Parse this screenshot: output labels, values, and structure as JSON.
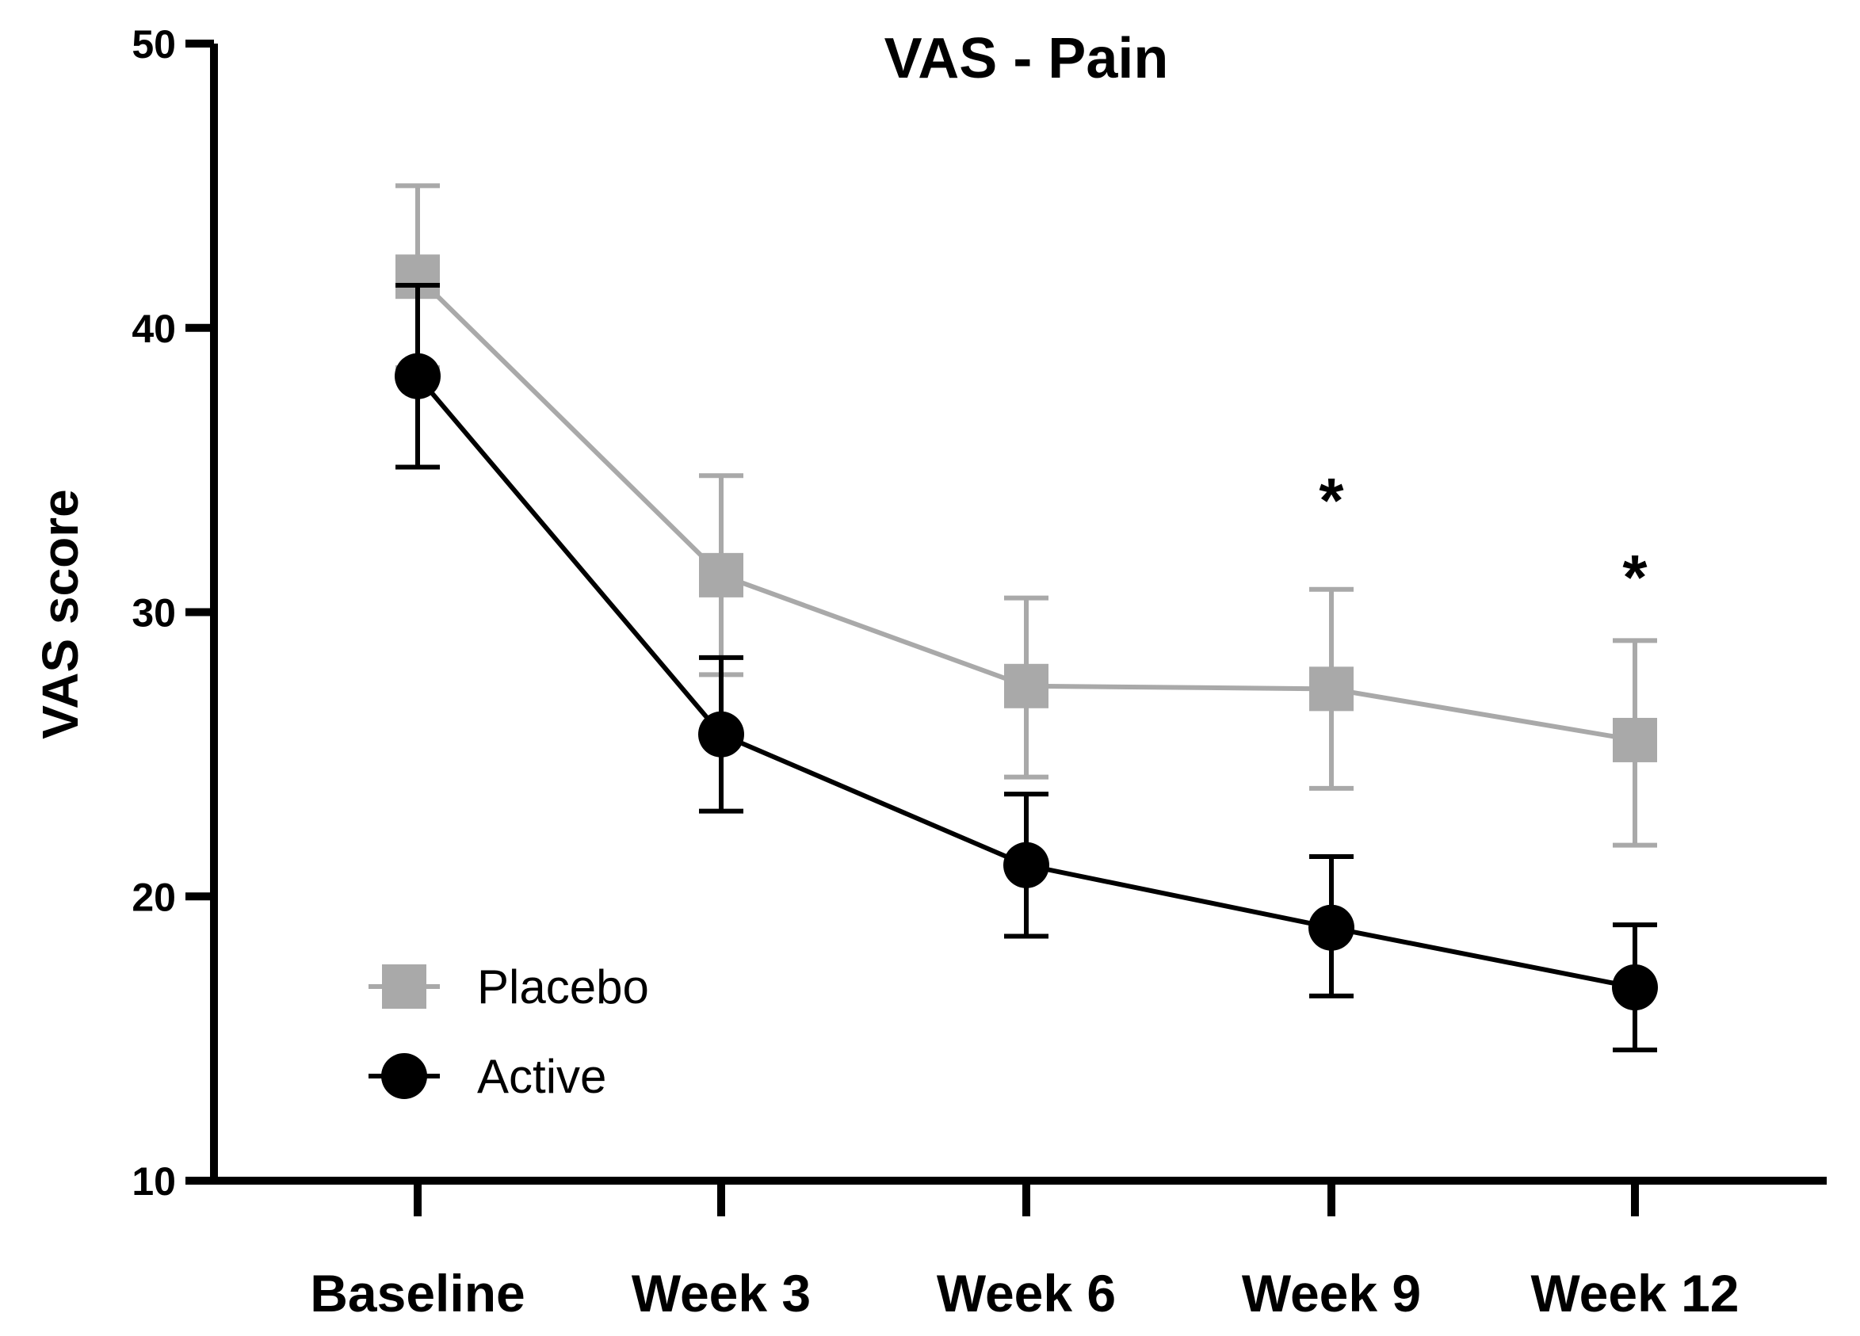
{
  "chart_data": {
    "type": "line",
    "title": "VAS - Pain",
    "xlabel": "",
    "ylabel": "VAS score",
    "ylim": [
      10,
      50
    ],
    "yticks": [
      10,
      20,
      30,
      40,
      50
    ],
    "ytick_labels": [
      "10",
      "20",
      "30",
      "40",
      "50"
    ],
    "categories": [
      "Baseline",
      "Week 3",
      "Week 6",
      "Week 9",
      "Week 12"
    ],
    "grid": false,
    "legend_position": "bottom-left",
    "series": [
      {
        "name": "Placebo",
        "marker": "square",
        "color": "#a9a9a9",
        "values": [
          41.8,
          31.3,
          27.4,
          27.3,
          25.5
        ],
        "error_upper": [
          45.0,
          34.8,
          30.5,
          30.8,
          29.0
        ],
        "error_lower": [
          38.6,
          27.8,
          24.2,
          23.8,
          21.8
        ]
      },
      {
        "name": "Active",
        "marker": "circle",
        "color": "#000000",
        "values": [
          38.3,
          25.7,
          21.1,
          18.9,
          16.8
        ],
        "error_upper": [
          41.5,
          28.4,
          23.6,
          21.4,
          19.0
        ],
        "error_lower": [
          35.1,
          23.0,
          18.6,
          16.5,
          14.6
        ]
      }
    ],
    "annotations": [
      {
        "category": "Week 9",
        "text": "*",
        "y": 34.0
      },
      {
        "category": "Week 12",
        "text": "*",
        "y": 31.3
      }
    ]
  }
}
